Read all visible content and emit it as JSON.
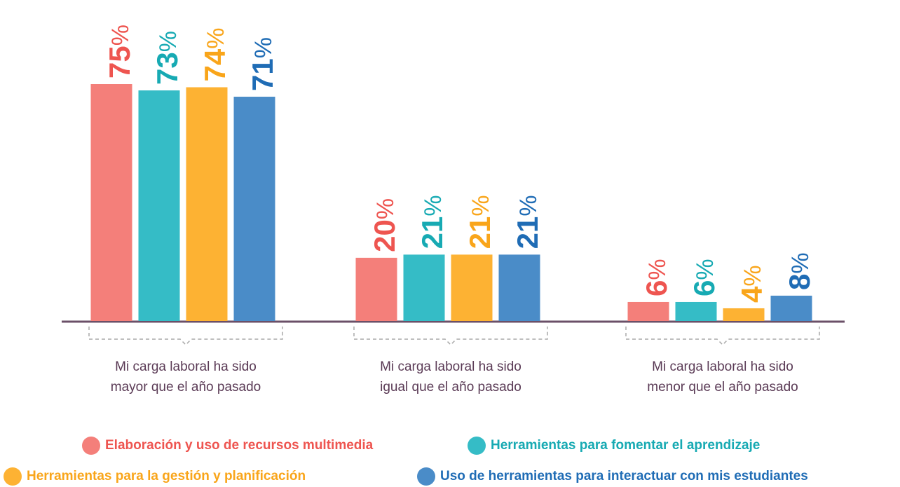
{
  "chart_data": {
    "type": "bar",
    "categories": [
      [
        "Mi carga laboral ha sido",
        "mayor que el año pasado"
      ],
      [
        "Mi carga laboral ha sido",
        "igual que el año pasado"
      ],
      [
        "Mi carga laboral ha sido",
        "menor que el año pasado"
      ]
    ],
    "series": [
      {
        "name": "Elaboración y uso de recursos multimedia",
        "color": "#f47f7a",
        "label_color": "#ee5550",
        "values": [
          75,
          20,
          6
        ],
        "value_labels": [
          "75%",
          "20%",
          "6%"
        ]
      },
      {
        "name": "Herramientas para fomentar el aprendizaje",
        "color": "#35bcc6",
        "label_color": "#17aab3",
        "values": [
          73,
          21,
          6
        ],
        "value_labels": [
          "73%",
          "21%",
          "6%"
        ]
      },
      {
        "name": "Herramientas para la gestión y planificación",
        "color": "#fdb233",
        "label_color": "#f9a51a",
        "values": [
          74,
          21,
          4
        ],
        "value_labels": [
          "74%",
          "21%",
          "4%"
        ]
      },
      {
        "name": "Uso de herramientas para interactuar con mis estudiantes",
        "color": "#4a8cc8",
        "label_color": "#1f6cb5",
        "values": [
          71,
          21,
          8
        ],
        "value_labels": [
          "71%",
          "21%",
          "8%"
        ]
      }
    ]
  }
}
